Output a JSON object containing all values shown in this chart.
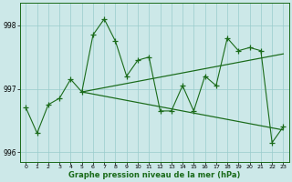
{
  "x": [
    0,
    1,
    2,
    3,
    4,
    5,
    6,
    7,
    8,
    9,
    10,
    11,
    12,
    13,
    14,
    15,
    16,
    17,
    18,
    19,
    20,
    21,
    22,
    23
  ],
  "y_main": [
    996.7,
    996.3,
    996.75,
    996.85,
    997.15,
    996.95,
    997.85,
    998.1,
    997.75,
    997.2,
    997.45,
    997.5,
    996.65,
    996.65,
    997.05,
    996.65,
    997.2,
    997.05,
    997.8,
    997.6,
    997.65,
    997.6,
    996.15,
    996.4
  ],
  "trend1_x": [
    5,
    23
  ],
  "trend1_y": [
    996.95,
    997.55
  ],
  "trend2_x": [
    5,
    23
  ],
  "trend2_y": [
    996.95,
    996.35
  ],
  "ylim": [
    995.85,
    998.35
  ],
  "yticks": [
    996,
    997,
    998
  ],
  "xticks": [
    0,
    1,
    2,
    3,
    4,
    5,
    6,
    7,
    8,
    9,
    10,
    11,
    12,
    13,
    14,
    15,
    16,
    17,
    18,
    19,
    20,
    21,
    22,
    23
  ],
  "line_color": "#1a6b1a",
  "bg_color": "#cce8e8",
  "grid_color": "#99cccc",
  "xlabel": "Graphe pression niveau de la mer (hPa)",
  "marker": "+",
  "markersize": 4,
  "linewidth": 0.8
}
